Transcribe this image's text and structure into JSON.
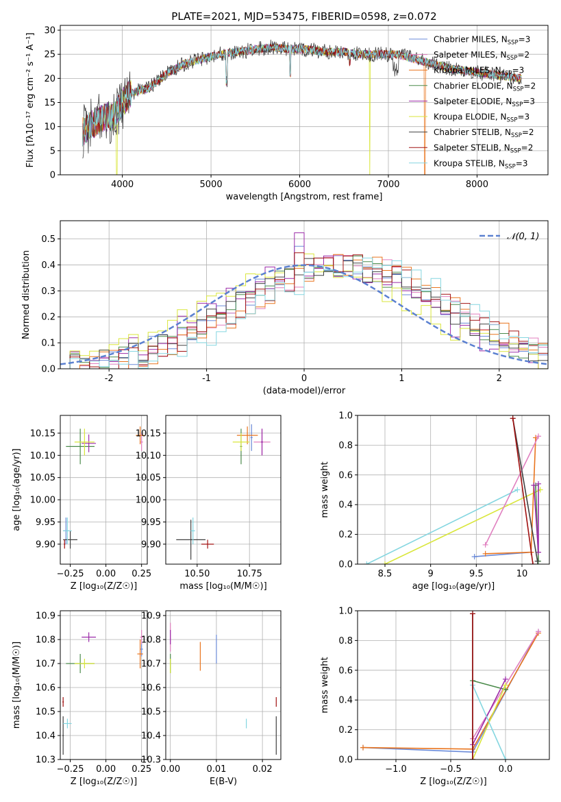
{
  "colors": {
    "chabrier_miles": "#6a8ad8",
    "salpeter_miles": "#e07fbf",
    "kroupa_miles": "#e9741d",
    "chabrier_elodie": "#4a8a4a",
    "salpeter_elodie": "#9b2aa8",
    "kroupa_elodie": "#d9e63a",
    "chabrier_stelib": "#404040",
    "salpeter_stelib": "#a01010",
    "kroupa_stelib": "#84d6e0",
    "normal": "#5b80d0"
  },
  "chart_data": [
    {
      "id": "spectrum",
      "type": "line",
      "title": "PLATE=2021, MJD=53475, FIBERID=0598, z=0.072",
      "xlabel": "wavelength [Angstrom, rest frame]",
      "ylabel": "Flux [fλ10⁻¹⁷ erg cm⁻² s⁻¹ A⁻¹]",
      "xlim": [
        3300,
        8800
      ],
      "ylim": [
        0,
        31
      ],
      "xticks": [
        4000,
        5000,
        6000,
        7000,
        8000
      ],
      "yticks": [
        0,
        5,
        10,
        15,
        20,
        25,
        30
      ],
      "continuum": [
        [
          3550,
          9
        ],
        [
          3700,
          11
        ],
        [
          3800,
          12
        ],
        [
          3900,
          12
        ],
        [
          4000,
          15
        ],
        [
          4100,
          17
        ],
        [
          4300,
          18
        ],
        [
          4500,
          21
        ],
        [
          4700,
          23
        ],
        [
          4900,
          24
        ],
        [
          5100,
          25
        ],
        [
          5300,
          25.5
        ],
        [
          5500,
          26
        ],
        [
          5700,
          26.5
        ],
        [
          5900,
          26
        ],
        [
          6100,
          26
        ],
        [
          6300,
          25.5
        ],
        [
          6500,
          25.5
        ],
        [
          6700,
          25
        ],
        [
          6900,
          25
        ],
        [
          7100,
          25
        ],
        [
          7300,
          24
        ],
        [
          7500,
          23
        ],
        [
          7700,
          22
        ],
        [
          7900,
          21.5
        ],
        [
          8100,
          21
        ],
        [
          8300,
          20.5
        ],
        [
          8500,
          20
        ]
      ],
      "legend_loc": "upper right",
      "legend": [
        {
          "key": "chabrier_miles",
          "name": "Chabrier MILES, N",
          "sup": "SSP",
          "val": "=3"
        },
        {
          "key": "salpeter_miles",
          "name": "Salpeter MILES, N",
          "sup": "SSP",
          "val": "=2"
        },
        {
          "key": "kroupa_miles",
          "name": "Kroupa MILES, N",
          "sup": "SSP",
          "val": "=3"
        },
        {
          "key": "chabrier_elodie",
          "name": "Chabrier ELODIE, N",
          "sup": "SSP",
          "val": "=2"
        },
        {
          "key": "salpeter_elodie",
          "name": "Salpeter ELODIE, N",
          "sup": "SSP",
          "val": "=3"
        },
        {
          "key": "kroupa_elodie",
          "name": "Kroupa ELODIE, N",
          "sup": "SSP",
          "val": "=3"
        },
        {
          "key": "chabrier_stelib",
          "name": "Chabrier STELIB, N",
          "sup": "SSP",
          "val": "=2"
        },
        {
          "key": "salpeter_stelib",
          "name": "Salpeter STELIB, N",
          "sup": "SSP",
          "val": "=2"
        },
        {
          "key": "kroupa_stelib",
          "name": "Kroupa STELIB, N",
          "sup": "SSP",
          "val": "=3"
        }
      ]
    },
    {
      "id": "residuals",
      "type": "line",
      "xlabel": "(data-model)/error",
      "ylabel": "Normed distribution",
      "xlim": [
        -2.5,
        2.5
      ],
      "ylim": [
        0,
        0.57
      ],
      "xticks": [
        -2,
        -1,
        0,
        1,
        2
      ],
      "yticks": [
        0.0,
        0.1,
        0.2,
        0.3,
        0.4,
        0.5
      ],
      "legend": [
        {
          "key": "normal",
          "name": "𝒩(0, 1)"
        }
      ],
      "bin_edges_range": [
        -2.5,
        2.5
      ],
      "bin_width": 0.1,
      "series_offsets": {
        "chabrier_miles": 0.32,
        "salpeter_miles": 0.48,
        "kroupa_miles": 0.5,
        "chabrier_elodie": 0.35,
        "salpeter_elodie": 0.15,
        "kroupa_elodie": 0.05,
        "chabrier_stelib": 0.3,
        "salpeter_stelib": 0.45,
        "kroupa_stelib": 0.6
      }
    },
    {
      "id": "age_vs_Z",
      "type": "scatter",
      "xlabel": "Z [log₁₀(Z/Z☉)]",
      "ylabel": "age  [log₁₀(age/yr)]",
      "xlim": [
        -0.32,
        0.29
      ],
      "ylim": [
        9.855,
        10.19
      ],
      "xticks": [
        -0.25,
        0.0,
        0.25
      ],
      "xticklabels": [
        "−0.25",
        "0.00",
        "0.25"
      ],
      "yticks": [
        9.9,
        9.95,
        10.0,
        10.05,
        10.1,
        10.15
      ],
      "points": [
        {
          "key": "chabrier_miles",
          "x": -0.28,
          "y": 9.93,
          "xerr": 0.02,
          "yerr": 0.03
        },
        {
          "key": "salpeter_miles",
          "x": 0.25,
          "y": 10.13,
          "xerr": 0.01,
          "yerr": 0.02
        },
        {
          "key": "kroupa_miles",
          "x": 0.24,
          "y": 10.145,
          "xerr": 0.03,
          "yerr": 0.02
        },
        {
          "key": "chabrier_elodie",
          "x": -0.18,
          "y": 10.12,
          "xerr": 0.1,
          "yerr": 0.04
        },
        {
          "key": "salpeter_elodie",
          "x": -0.12,
          "y": 10.127,
          "xerr": 0.05,
          "yerr": 0.02
        },
        {
          "key": "kroupa_elodie",
          "x": -0.15,
          "y": 10.13,
          "xerr": 0.07,
          "yerr": 0.03
        },
        {
          "key": "chabrier_stelib",
          "x": -0.25,
          "y": 9.91,
          "xerr": 0.05,
          "yerr": 0.02
        },
        {
          "key": "salpeter_stelib",
          "x": -0.29,
          "y": 9.9,
          "xerr": 0.005,
          "yerr": 0.01
        },
        {
          "key": "kroupa_stelib",
          "x": -0.27,
          "y": 9.93,
          "xerr": 0.03,
          "yerr": 0.03
        }
      ]
    },
    {
      "id": "age_vs_mass",
      "type": "scatter",
      "xlabel": "mass [log₁₀(M/M☉)]",
      "ylabel": "",
      "xlim": [
        10.35,
        10.9
      ],
      "ylim": [
        9.855,
        10.19
      ],
      "xticks": [
        10.5,
        10.75
      ],
      "xticklabels": [
        "10.50",
        "10.75"
      ],
      "yticks": [
        9.9,
        9.95,
        10.0,
        10.05,
        10.1,
        10.15
      ],
      "points": [
        {
          "key": "chabrier_miles",
          "x": 10.76,
          "y": 10.14,
          "xerr": 0.005,
          "yerr": 0.03
        },
        {
          "key": "salpeter_miles",
          "x": 10.81,
          "y": 10.13,
          "xerr": 0.04,
          "yerr": 0.03
        },
        {
          "key": "kroupa_miles",
          "x": 10.74,
          "y": 10.145,
          "xerr": 0.05,
          "yerr": 0.02
        },
        {
          "key": "chabrier_elodie",
          "x": 10.71,
          "y": 10.12,
          "xerr": 0.005,
          "yerr": 0.04
        },
        {
          "key": "salpeter_elodie",
          "x": 10.81,
          "y": 10.13,
          "xerr": 0.005,
          "yerr": 0.03
        },
        {
          "key": "kroupa_elodie",
          "x": 10.71,
          "y": 10.13,
          "xerr": 0.04,
          "yerr": 0.02
        },
        {
          "key": "chabrier_stelib",
          "x": 10.47,
          "y": 9.91,
          "xerr": 0.07,
          "yerr": 0.045
        },
        {
          "key": "salpeter_stelib",
          "x": 10.55,
          "y": 9.9,
          "xerr": 0.03,
          "yerr": 0.01
        },
        {
          "key": "kroupa_stelib",
          "x": 10.48,
          "y": 9.93,
          "xerr": 0.01,
          "yerr": 0.03
        }
      ]
    },
    {
      "id": "weight_vs_age",
      "type": "line",
      "xlabel": "age  [log₁₀(age/yr)]",
      "ylabel": "mass weight",
      "xlim": [
        8.2,
        10.3
      ],
      "ylim": [
        0,
        1
      ],
      "xticks": [
        8.5,
        9.0,
        9.5,
        10.0
      ],
      "yticks": [
        0.0,
        0.2,
        0.4,
        0.6,
        0.8,
        1.0
      ],
      "series": [
        {
          "key": "kroupa_stelib",
          "x": [
            8.3,
            9.95
          ],
          "y": [
            0.0,
            0.5
          ]
        },
        {
          "key": "kroupa_elodie",
          "x": [
            8.5,
            10.2
          ],
          "y": [
            0.0,
            0.5
          ]
        },
        {
          "key": "chabrier_miles",
          "x": [
            9.48,
            10.1
          ],
          "y": [
            0.05,
            0.08
          ]
        },
        {
          "key": "kroupa_miles",
          "x": [
            9.6,
            10.1,
            10.15
          ],
          "y": [
            0.07,
            0.08,
            0.85
          ]
        },
        {
          "key": "salpeter_miles",
          "x": [
            9.6,
            10.18
          ],
          "y": [
            0.13,
            0.86
          ]
        },
        {
          "key": "chabrier_elodie",
          "x": [
            10.15,
            10.18
          ],
          "y": [
            0.53,
            0.02
          ]
        },
        {
          "key": "salpeter_elodie",
          "x": [
            10.13,
            10.18,
            10.18
          ],
          "y": [
            0.53,
            0.08,
            0.54
          ]
        },
        {
          "key": "chabrier_stelib",
          "x": [
            9.9,
            10.17
          ],
          "y": [
            0.98,
            0.02
          ]
        },
        {
          "key": "salpeter_stelib",
          "x": [
            9.9,
            10.12
          ],
          "y": [
            0.98,
            0.0
          ]
        }
      ]
    },
    {
      "id": "mass_vs_Z",
      "type": "scatter",
      "xlabel": "Z [log₁₀(Z/Z☉)]",
      "ylabel": "mass [log₁₀(M/M☉)]",
      "xlim": [
        -0.32,
        0.29
      ],
      "ylim": [
        10.3,
        10.92
      ],
      "xticks": [
        -0.25,
        0.0,
        0.25
      ],
      "xticklabels": [
        "−0.25",
        "0.00",
        "0.25"
      ],
      "yticks": [
        10.3,
        10.4,
        10.5,
        10.6,
        10.7,
        10.8,
        10.9
      ],
      "points": [
        {
          "key": "chabrier_miles",
          "x": 0.25,
          "y": 10.76,
          "xerr": 0.01,
          "yerr": 0.03
        },
        {
          "key": "salpeter_miles",
          "x": 0.25,
          "y": 10.81,
          "xerr": 0.01,
          "yerr": 0.03
        },
        {
          "key": "kroupa_miles",
          "x": 0.24,
          "y": 10.74,
          "xerr": 0.02,
          "yerr": 0.06
        },
        {
          "key": "chabrier_elodie",
          "x": -0.18,
          "y": 10.7,
          "xerr": 0.1,
          "yerr": 0.04
        },
        {
          "key": "salpeter_elodie",
          "x": -0.12,
          "y": 10.81,
          "xerr": 0.05,
          "yerr": 0.02
        },
        {
          "key": "kroupa_elodie",
          "x": -0.15,
          "y": 10.7,
          "xerr": 0.07,
          "yerr": 0.02
        },
        {
          "key": "chabrier_stelib",
          "x": -0.3,
          "y": 10.4,
          "xerr": 0.005,
          "yerr": 0.08
        },
        {
          "key": "salpeter_stelib",
          "x": -0.3,
          "y": 10.54,
          "xerr": 0.005,
          "yerr": 0.02
        },
        {
          "key": "kroupa_stelib",
          "x": -0.27,
          "y": 10.45,
          "xerr": 0.03,
          "yerr": 0.02
        }
      ]
    },
    {
      "id": "mass_vs_ebv",
      "type": "scatter",
      "xlabel": "E(B-V)",
      "ylabel": "",
      "xlim": [
        -0.001,
        0.024
      ],
      "ylim": [
        10.3,
        10.92
      ],
      "xticks": [
        0.0,
        0.01,
        0.02
      ],
      "xticklabels": [
        "0.00",
        "0.01",
        "0.02"
      ],
      "yticks": [
        10.3,
        10.4,
        10.5,
        10.6,
        10.7,
        10.8,
        10.9
      ],
      "points": [
        {
          "key": "chabrier_miles",
          "x": 0.01,
          "y": 10.76,
          "xerr": 0,
          "yerr": 0.06
        },
        {
          "key": "salpeter_miles",
          "x": 0.0,
          "y": 10.81,
          "xerr": 0,
          "yerr": 0.06
        },
        {
          "key": "kroupa_miles",
          "x": 0.0065,
          "y": 10.73,
          "xerr": 0,
          "yerr": 0.06
        },
        {
          "key": "chabrier_elodie",
          "x": 0.0,
          "y": 10.7,
          "xerr": 0,
          "yerr": 0.04
        },
        {
          "key": "salpeter_elodie",
          "x": 0.0,
          "y": 10.81,
          "xerr": 0,
          "yerr": 0.03
        },
        {
          "key": "kroupa_elodie",
          "x": 0.0,
          "y": 10.69,
          "xerr": 0,
          "yerr": 0.03
        },
        {
          "key": "chabrier_stelib",
          "x": 0.023,
          "y": 10.4,
          "xerr": 0,
          "yerr": 0.08
        },
        {
          "key": "salpeter_stelib",
          "x": 0.023,
          "y": 10.54,
          "xerr": 0,
          "yerr": 0.02
        },
        {
          "key": "kroupa_stelib",
          "x": 0.0165,
          "y": 10.45,
          "xerr": 0,
          "yerr": 0.02
        }
      ]
    },
    {
      "id": "weight_vs_Z",
      "type": "line",
      "xlabel": "Z [log₁₀(Z/Z☉)]",
      "ylabel": "mass weight",
      "xlim": [
        -1.35,
        0.4
      ],
      "ylim": [
        0,
        1
      ],
      "xticks": [
        -1.0,
        -0.5,
        0.0
      ],
      "xticklabels": [
        "−1.0",
        "−0.5",
        "0.0"
      ],
      "yticks": [
        0.0,
        0.2,
        0.4,
        0.6,
        0.8,
        1.0
      ],
      "series": [
        {
          "key": "chabrier_miles",
          "x": [
            -1.3,
            -0.3,
            0.3
          ],
          "y": [
            0.08,
            0.05,
            0.86
          ]
        },
        {
          "key": "kroupa_miles",
          "x": [
            -1.3,
            -0.3,
            0.3
          ],
          "y": [
            0.08,
            0.07,
            0.85
          ]
        },
        {
          "key": "salpeter_miles",
          "x": [
            -0.3,
            0.3
          ],
          "y": [
            0.14,
            0.86
          ]
        },
        {
          "key": "chabrier_elodie",
          "x": [
            -0.3,
            0.0,
            0.0
          ],
          "y": [
            0.53,
            0.47,
            0.47
          ]
        },
        {
          "key": "salpeter_elodie",
          "x": [
            -0.3,
            0.0
          ],
          "y": [
            0.1,
            0.54
          ]
        },
        {
          "key": "kroupa_elodie",
          "x": [
            -0.3,
            0.0
          ],
          "y": [
            0.0,
            0.5
          ]
        },
        {
          "key": "kroupa_stelib",
          "x": [
            -0.3,
            0.0
          ],
          "y": [
            0.5,
            0.0
          ]
        },
        {
          "key": "chabrier_stelib",
          "x": [
            -0.3,
            -0.3
          ],
          "y": [
            0.0,
            0.98
          ]
        },
        {
          "key": "salpeter_stelib",
          "x": [
            -0.3,
            -0.3
          ],
          "y": [
            0.0,
            0.98
          ]
        }
      ]
    }
  ]
}
